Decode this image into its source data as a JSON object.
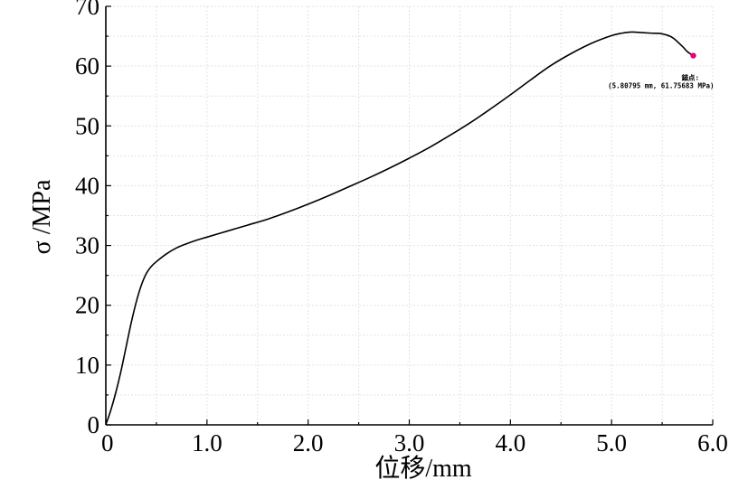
{
  "chart_data": {
    "type": "line",
    "xlabel": "位移/mm",
    "ylabel": "σ /MPa",
    "xlim": [
      0,
      6.0
    ],
    "ylim": [
      0,
      70
    ],
    "x_ticks": [
      {
        "value": 0,
        "label": "0"
      },
      {
        "value": 1,
        "label": "1.0"
      },
      {
        "value": 2,
        "label": "2.0"
      },
      {
        "value": 3,
        "label": "3.0"
      },
      {
        "value": 4,
        "label": "4.0"
      },
      {
        "value": 5,
        "label": "5.0"
      },
      {
        "value": 6,
        "label": "6.0"
      }
    ],
    "y_ticks": [
      {
        "value": 0,
        "label": "0"
      },
      {
        "value": 10,
        "label": "10"
      },
      {
        "value": 20,
        "label": "20"
      },
      {
        "value": 30,
        "label": "30"
      },
      {
        "value": 40,
        "label": "40"
      },
      {
        "value": 50,
        "label": "50"
      },
      {
        "value": 60,
        "label": "60"
      },
      {
        "value": 70,
        "label": "70"
      }
    ],
    "grid": true,
    "series": [
      {
        "x": [
          0,
          0.05,
          0.1,
          0.15,
          0.2,
          0.25,
          0.3,
          0.35,
          0.4,
          0.45,
          0.5,
          0.6,
          0.7,
          0.8,
          0.9,
          1.0,
          1.2,
          1.4,
          1.6,
          1.8,
          2.0,
          2.2,
          2.4,
          2.6,
          2.8,
          3.0,
          3.2,
          3.4,
          3.6,
          3.8,
          4.0,
          4.2,
          4.4,
          4.6,
          4.8,
          5.0,
          5.1,
          5.2,
          5.3,
          5.4,
          5.5,
          5.6,
          5.7,
          5.75,
          5.80795
        ],
        "y": [
          0,
          2.5,
          5.5,
          9,
          13,
          17,
          20.5,
          23.3,
          25.3,
          26.5,
          27.3,
          28.6,
          29.6,
          30.3,
          30.9,
          31.4,
          32.4,
          33.4,
          34.4,
          35.6,
          36.9,
          38.3,
          39.8,
          41.3,
          42.9,
          44.6,
          46.4,
          48.4,
          50.5,
          52.8,
          55.2,
          57.7,
          60.1,
          62.1,
          63.8,
          65.1,
          65.5,
          65.7,
          65.6,
          65.5,
          65.4,
          64.8,
          63.3,
          62.4,
          61.75683
        ],
        "color": "#000000"
      }
    ],
    "annotation": {
      "x": 5.80795,
      "y": 61.75683,
      "color": "#e6007e",
      "title": "錨点:",
      "text": "(5.80795 mm, 61.75683 MPa)"
    }
  }
}
